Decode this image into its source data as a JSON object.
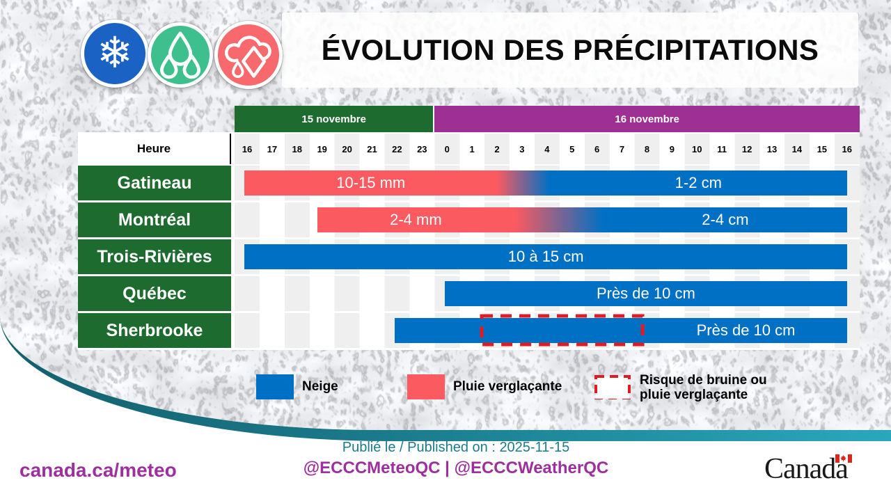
{
  "header": {
    "title": "ÉVOLUTION DES PRÉCIPITATIONS",
    "icon_colors": {
      "snow_circle": "#1a63c4",
      "drops_circle": "#3ec08e",
      "freezing_circle": "#f8696d"
    }
  },
  "timeline": {
    "hour_label": "Heure",
    "days": [
      {
        "label": "15 novembre",
        "color": "#1e6b30",
        "cells": 8
      },
      {
        "label": "16 novembre",
        "color": "#9d3092",
        "cells": 17
      }
    ],
    "hours": [
      "16",
      "17",
      "18",
      "19",
      "20",
      "21",
      "22",
      "23",
      "0",
      "1",
      "2",
      "3",
      "4",
      "5",
      "6",
      "7",
      "8",
      "9",
      "10",
      "11",
      "12",
      "13",
      "14",
      "15",
      "16"
    ]
  },
  "chart_data": {
    "type": "bar",
    "subtype": "precipitation-gantt-timeline",
    "x_unit": "hours elapsed since 15 novembre 16:00 (1 cell = 1 hour, 25 cells: 16h-23h then 0h-16h)",
    "colors": {
      "neige": "#0070c4",
      "pluie": "#fb5a60",
      "risk_border": "#e11b22"
    },
    "cities": [
      {
        "name": "Gatineau",
        "bar": {
          "start": 0.4,
          "end": 24.5
        },
        "rain": {
          "until": 10.5,
          "label": "10-15 mm"
        },
        "transition_end": 12.6,
        "snow": {
          "label": "1-2 cm"
        }
      },
      {
        "name": "Montréal",
        "bar": {
          "start": 3.3,
          "end": 24.5
        },
        "rain": {
          "until": 11.2,
          "label": "2-4 mm"
        },
        "transition_end": 14.75,
        "snow": {
          "label": "2-4 cm"
        }
      },
      {
        "name": "Trois-Rivières",
        "bar": {
          "start": 0.4,
          "end": 24.5
        },
        "snow": {
          "label": "10 à 15 cm"
        }
      },
      {
        "name": "Québec",
        "bar": {
          "start": 8.4,
          "end": 24.5
        },
        "snow": {
          "label": "Près de 10 cm"
        }
      },
      {
        "name": "Sherbrooke",
        "bar": {
          "start": 6.4,
          "end": 24.5
        },
        "snow": {
          "label": "Près de 10 cm"
        },
        "snow_label_from": 16.4,
        "risk": {
          "start": 9.8,
          "end": 16.4
        }
      }
    ]
  },
  "legend": {
    "items": [
      {
        "type": "neige",
        "label": "Neige"
      },
      {
        "type": "pluie",
        "label": "Pluie verglaçante"
      },
      {
        "type": "risk",
        "label": "Risque de bruine ou pluie verglaçante"
      }
    ]
  },
  "footer": {
    "site": "canada.ca/meteo",
    "published": "Publié le / Published on : 2025-11-15",
    "handles": "@ECCCMeteoQC | @ECCCWeatherQC",
    "wordmark": "Canada"
  }
}
